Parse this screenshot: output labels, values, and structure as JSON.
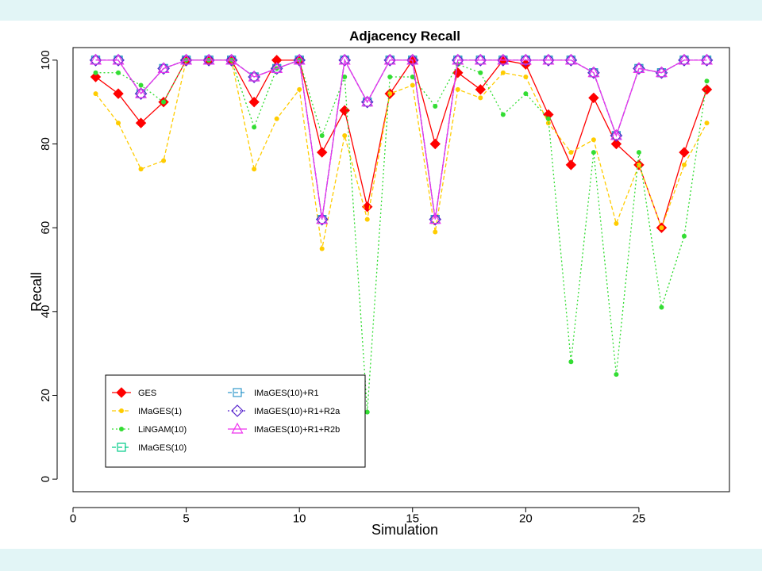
{
  "chart_data": {
    "type": "line",
    "title": "Adjacency Recall",
    "xlabel": "Simulation",
    "ylabel": "Recall",
    "xlim": [
      0,
      29
    ],
    "ylim": [
      -3,
      103
    ],
    "xticks": [
      0,
      5,
      10,
      15,
      20,
      25
    ],
    "yticks": [
      0,
      20,
      40,
      60,
      80,
      100
    ],
    "legend_position": "bottom-left",
    "grid": false,
    "x": [
      1,
      2,
      3,
      4,
      5,
      6,
      7,
      8,
      9,
      10,
      11,
      12,
      13,
      14,
      15,
      16,
      17,
      18,
      19,
      20,
      21,
      22,
      23,
      24,
      25,
      26,
      27,
      28
    ],
    "series": [
      {
        "name": "GES",
        "color": "#ff0000",
        "line": "solid",
        "marker": "diamond-filled",
        "values": [
          96,
          92,
          85,
          90,
          100,
          100,
          100,
          90,
          100,
          100,
          78,
          88,
          65,
          92,
          100,
          80,
          97,
          93,
          100,
          99,
          87,
          75,
          91,
          80,
          75,
          60,
          78,
          93
        ]
      },
      {
        "name": "IMaGES(1)",
        "color": "#ffcc00",
        "line": "dashed",
        "marker": "dot",
        "values": [
          92,
          85,
          74,
          76,
          100,
          100,
          100,
          74,
          86,
          93,
          55,
          82,
          62,
          92,
          94,
          59,
          93,
          91,
          97,
          96,
          85,
          78,
          81,
          61,
          75,
          60,
          75,
          85
        ]
      },
      {
        "name": "LiNGAM(10)",
        "color": "#33dd33",
        "line": "dotted",
        "marker": "dot",
        "values": [
          97,
          97,
          94,
          90,
          100,
          100,
          100,
          84,
          98,
          100,
          82,
          96,
          16,
          96,
          96,
          89,
          99,
          97,
          87,
          92,
          86,
          28,
          78,
          25,
          78,
          41,
          58,
          95
        ]
      },
      {
        "name": "IMaGES(10)",
        "color": "#00cc88",
        "line": "dashed",
        "marker": "square-open",
        "values": [
          100,
          100,
          92,
          98,
          100,
          100,
          100,
          96,
          98,
          100,
          62,
          100,
          90,
          100,
          100,
          62,
          100,
          100,
          100,
          100,
          100,
          100,
          97,
          82,
          98,
          97,
          100,
          100
        ]
      },
      {
        "name": "IMaGES(10)+R1",
        "color": "#3399cc",
        "line": "dashed",
        "marker": "square-open",
        "values": [
          100,
          100,
          92,
          98,
          100,
          100,
          100,
          96,
          98,
          100,
          62,
          100,
          90,
          100,
          100,
          62,
          100,
          100,
          100,
          100,
          100,
          100,
          97,
          82,
          98,
          97,
          100,
          100
        ]
      },
      {
        "name": "IMaGES(10)+R1+R2a",
        "color": "#5522cc",
        "line": "dotted",
        "marker": "diamond-open",
        "values": [
          100,
          100,
          92,
          98,
          100,
          100,
          100,
          96,
          98,
          100,
          62,
          100,
          90,
          100,
          100,
          62,
          100,
          100,
          100,
          100,
          100,
          100,
          97,
          82,
          98,
          97,
          100,
          100
        ]
      },
      {
        "name": "IMaGES(10)+R1+R2b",
        "color": "#ee33ee",
        "line": "solid",
        "marker": "triangle-open",
        "values": [
          100,
          100,
          92,
          98,
          100,
          100,
          100,
          96,
          98,
          100,
          62,
          100,
          90,
          100,
          100,
          62,
          100,
          100,
          100,
          100,
          100,
          100,
          97,
          82,
          98,
          97,
          100,
          100
        ]
      }
    ]
  }
}
